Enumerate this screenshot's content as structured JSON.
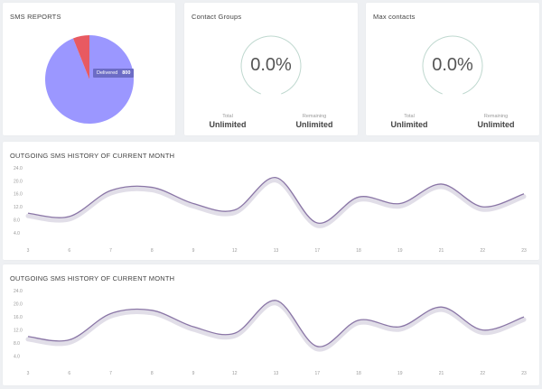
{
  "colors": {
    "pie_delivered": "#9b97ff",
    "pie_other": "#e85a61",
    "tooltip_bg": "#6c6cc5",
    "line": "#8a76a6",
    "gauge_ring": "#bfd8cf"
  },
  "sms_reports": {
    "title": "SMS REPORTS",
    "tooltip_label": "Delivered",
    "tooltip_value": "800",
    "slices": [
      {
        "label": "Delivered",
        "share": 0.94
      },
      {
        "label": "",
        "share": 0.06
      }
    ]
  },
  "contact_groups": {
    "title": "Contact Groups",
    "percent": "0.0%",
    "left_label": "Total",
    "left_value": "Unlimited",
    "right_label": "Remaining",
    "right_value": "Unlimited"
  },
  "max_contacts": {
    "title": "Max contacts",
    "percent": "0.0%",
    "left_label": "Total",
    "left_value": "Unlimited",
    "right_label": "Remaining",
    "right_value": "Unlimited"
  },
  "chart_data": [
    {
      "type": "line",
      "title": "OUTGOING SMS HISTORY OF CURRENT MONTH",
      "x": [
        "3",
        "6",
        "7",
        "8",
        "9",
        "12",
        "13",
        "17",
        "18",
        "19",
        "21",
        "22",
        "23"
      ],
      "y_ticks": [
        "24.0",
        "20.0",
        "16.0",
        "12.0",
        "8.0",
        "4.0"
      ],
      "ylim": [
        2,
        24
      ],
      "values": [
        10,
        9,
        17,
        18,
        13,
        11,
        21,
        7,
        15,
        13,
        19,
        12,
        16
      ],
      "grid": false
    },
    {
      "type": "line",
      "title": "OUTGOING SMS HISTORY OF CURRENT MONTH",
      "x": [
        "3",
        "6",
        "7",
        "8",
        "9",
        "12",
        "13",
        "17",
        "18",
        "19",
        "21",
        "22",
        "23"
      ],
      "y_ticks": [
        "24.0",
        "20.0",
        "16.0",
        "12.0",
        "8.0",
        "4.0"
      ],
      "ylim": [
        2,
        24
      ],
      "values": [
        10,
        9,
        17,
        18,
        13,
        11,
        21,
        7,
        15,
        13,
        19,
        12,
        16
      ],
      "grid": false
    }
  ]
}
